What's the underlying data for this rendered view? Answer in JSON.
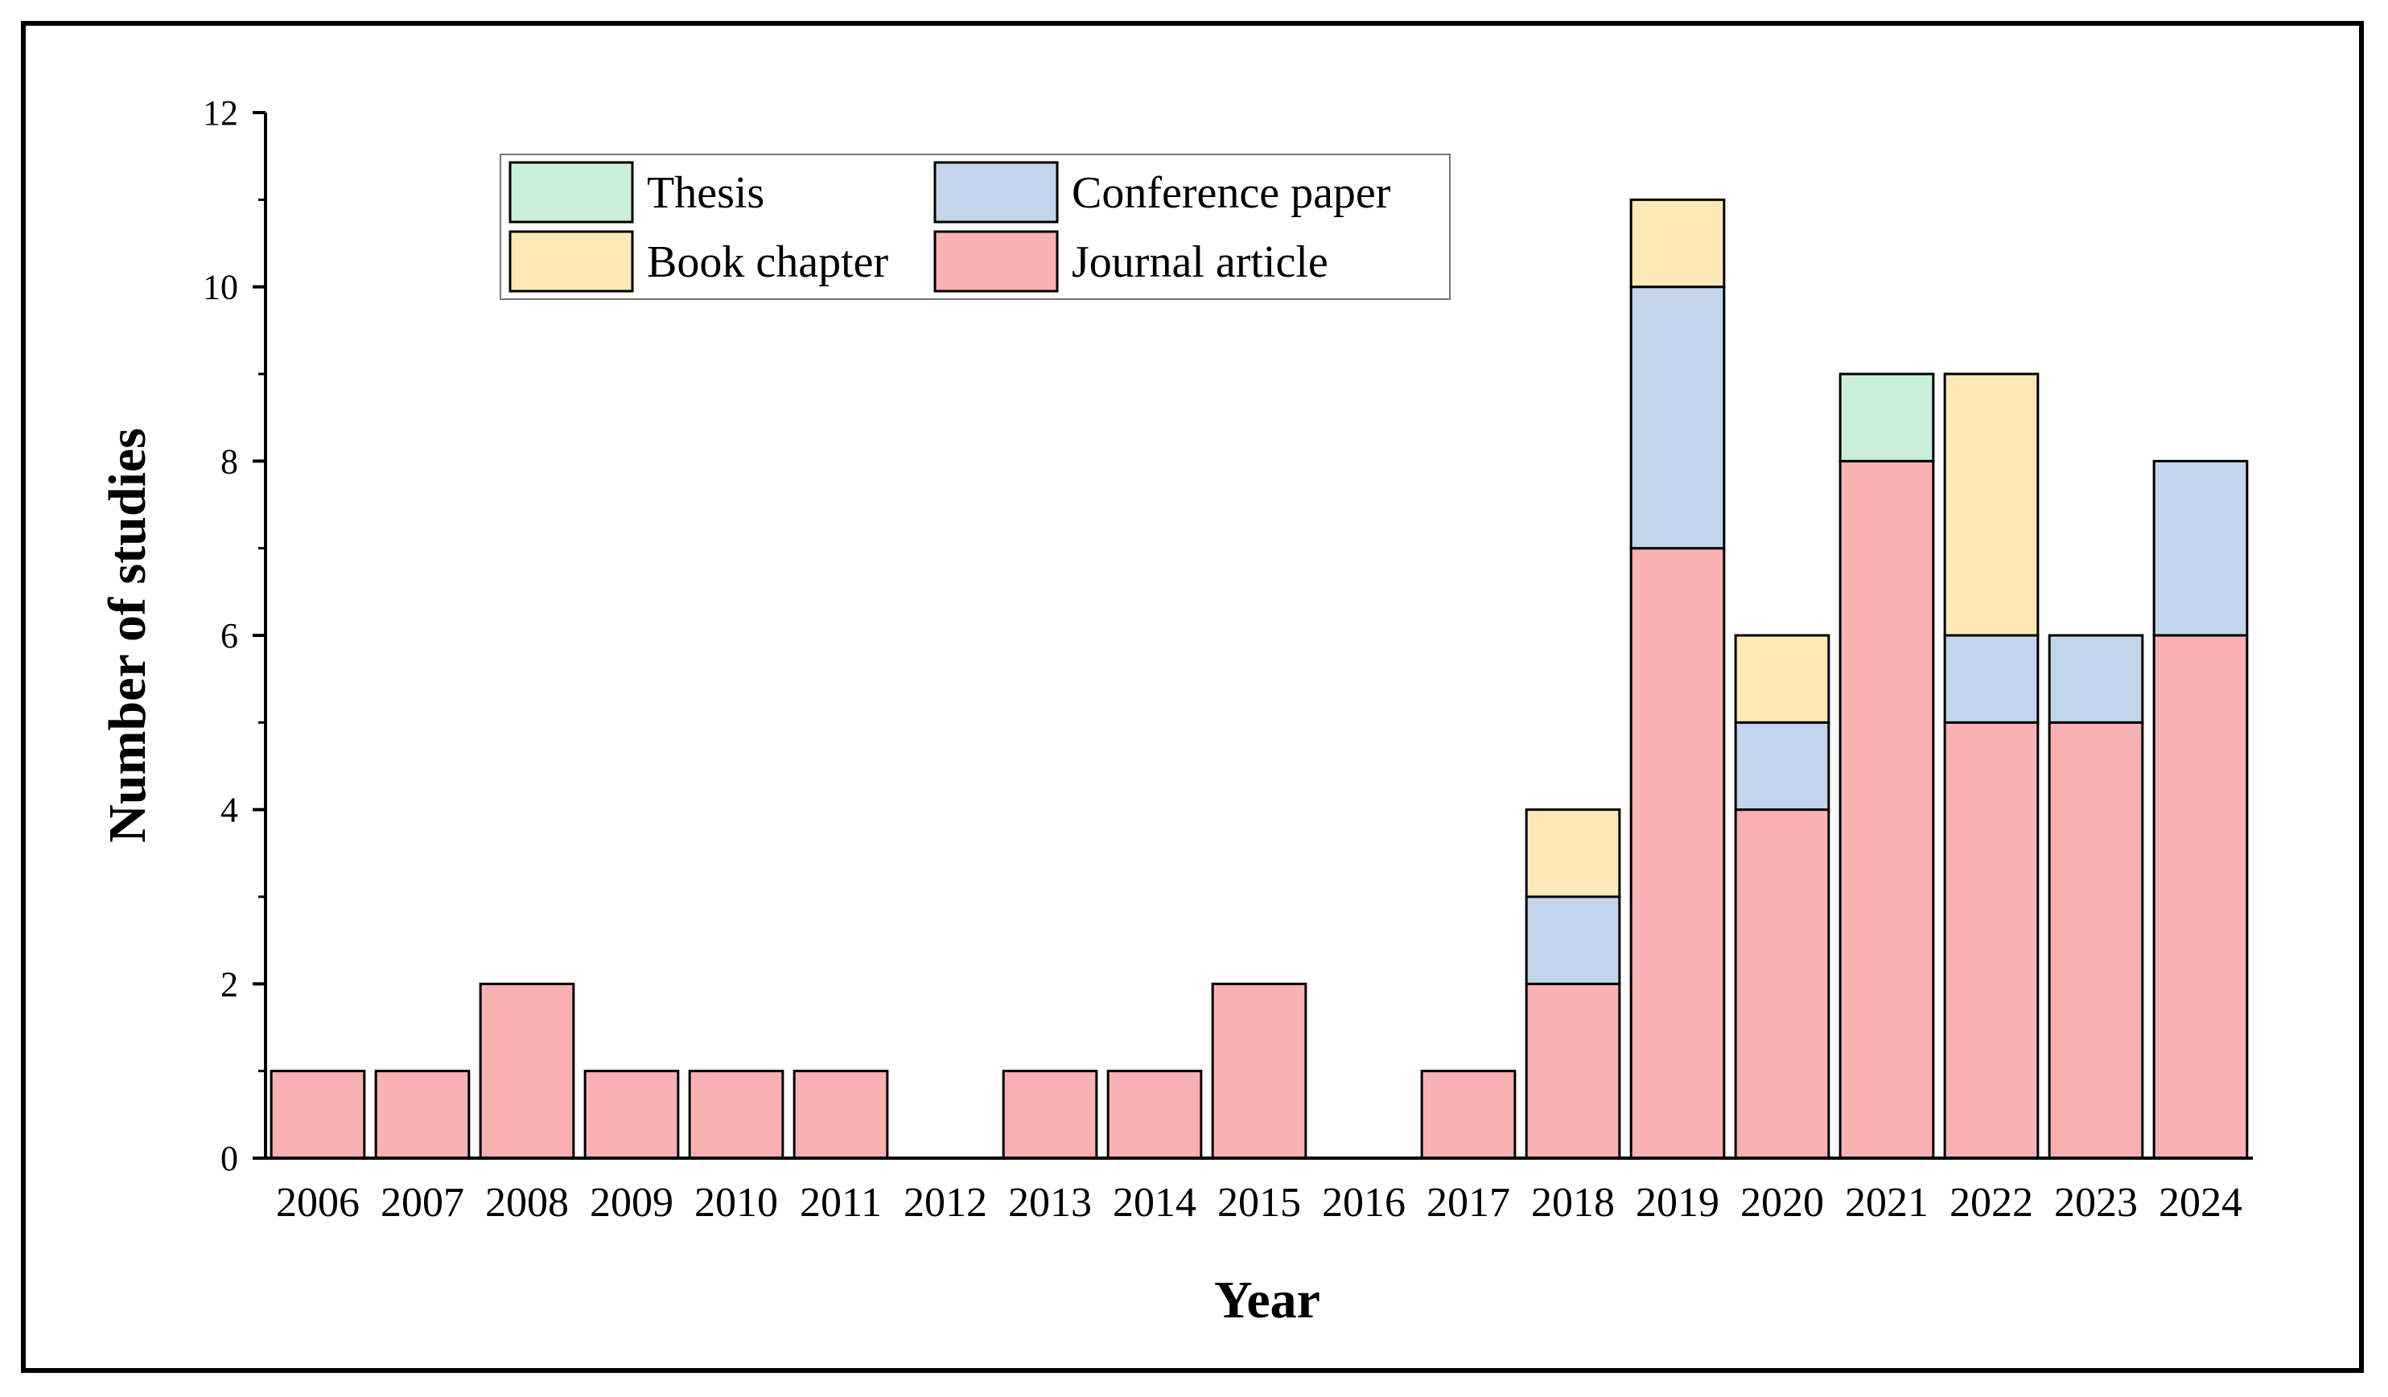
{
  "chart_data": {
    "type": "bar",
    "stacked": true,
    "xlabel": "Year",
    "ylabel": "Number of studies",
    "ylim": [
      0,
      12
    ],
    "yticks": [
      0,
      2,
      4,
      6,
      8,
      10,
      12
    ],
    "categories": [
      "2006",
      "2007",
      "2008",
      "2009",
      "2010",
      "2011",
      "2012",
      "2013",
      "2014",
      "2015",
      "2016",
      "2017",
      "2018",
      "2019",
      "2020",
      "2021",
      "2022",
      "2023",
      "2024"
    ],
    "series": [
      {
        "name": "Journal article",
        "color": "#f9b1b3",
        "values": [
          1,
          1,
          2,
          1,
          1,
          1,
          0,
          1,
          1,
          2,
          0,
          1,
          2,
          7,
          4,
          8,
          5,
          5,
          6
        ]
      },
      {
        "name": "Conference paper",
        "color": "#c2d5ea",
        "values": [
          0,
          0,
          0,
          0,
          0,
          0,
          0,
          0,
          0,
          0,
          0,
          0,
          1,
          3,
          1,
          0,
          1,
          1,
          2
        ]
      },
      {
        "name": "Book chapter",
        "color": "#fce9b7",
        "values": [
          0,
          0,
          0,
          0,
          0,
          0,
          0,
          0,
          0,
          0,
          0,
          0,
          1,
          1,
          1,
          0,
          3,
          0,
          0
        ]
      },
      {
        "name": "Thesis",
        "color": "#c9efd8",
        "values": [
          0,
          0,
          0,
          0,
          0,
          0,
          0,
          0,
          0,
          0,
          0,
          0,
          0,
          0,
          0,
          1,
          0,
          0,
          0
        ]
      }
    ],
    "legend": {
      "placement": "top-left",
      "order": [
        "Thesis",
        "Conference paper",
        "Book chapter",
        "Journal article"
      ]
    },
    "grid": false
  }
}
